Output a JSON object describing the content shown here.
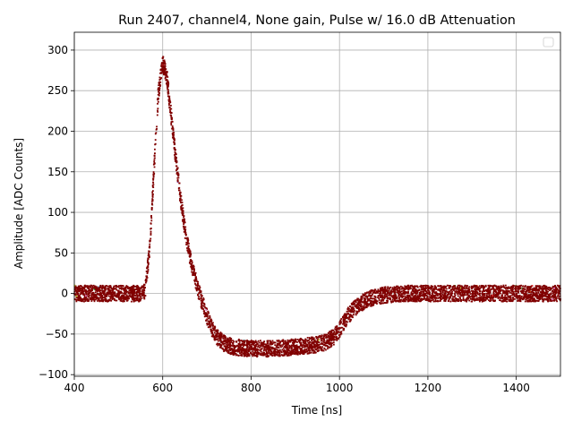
{
  "chart_data": {
    "type": "scatter",
    "title": "Run 2407, channel4, None gain, Pulse w/ 16.0 dB Attenuation",
    "xlabel": "Time [ns]",
    "ylabel": "Amplitude [ADC Counts]",
    "xlim": [
      400,
      1500
    ],
    "ylim": [
      -102,
      322
    ],
    "xticks": [
      400,
      600,
      800,
      1000,
      1200,
      1400
    ],
    "yticks": [
      -100,
      -50,
      0,
      50,
      100,
      150,
      200,
      250,
      300
    ],
    "grid": true,
    "legend": {
      "placement": "top-right",
      "entries": []
    },
    "point_color": "#800000",
    "outlier_colors": [
      "#1f77b4",
      "#ff7f0e",
      "#2ca02c",
      "#d62728",
      "#9467bd",
      "#8c564b",
      "#e377c2",
      "#bcbd22",
      "#17becf"
    ],
    "series": [
      {
        "x": [
          400,
          450,
          500,
          550,
          560,
          570,
          580,
          590,
          600,
          610,
          620,
          630,
          640,
          650,
          660,
          670,
          680,
          690,
          700,
          710,
          720,
          740,
          760,
          780,
          800,
          850,
          900,
          950,
          970,
          990,
          1000,
          1010,
          1020,
          1040,
          1060,
          1080,
          1100,
          1150,
          1200,
          1300,
          1400,
          1500
        ],
        "y": [
          0,
          0,
          0,
          0,
          3,
          50,
          150,
          245,
          285,
          265,
          215,
          165,
          120,
          80,
          50,
          25,
          5,
          -12,
          -28,
          -42,
          -52,
          -62,
          -66,
          -67,
          -68,
          -68,
          -66,
          -63,
          -60,
          -52,
          -45,
          -35,
          -27,
          -15,
          -8,
          -4,
          -2,
          0,
          0,
          0,
          0,
          0
        ],
        "band_halfwidth": 10
      }
    ]
  }
}
